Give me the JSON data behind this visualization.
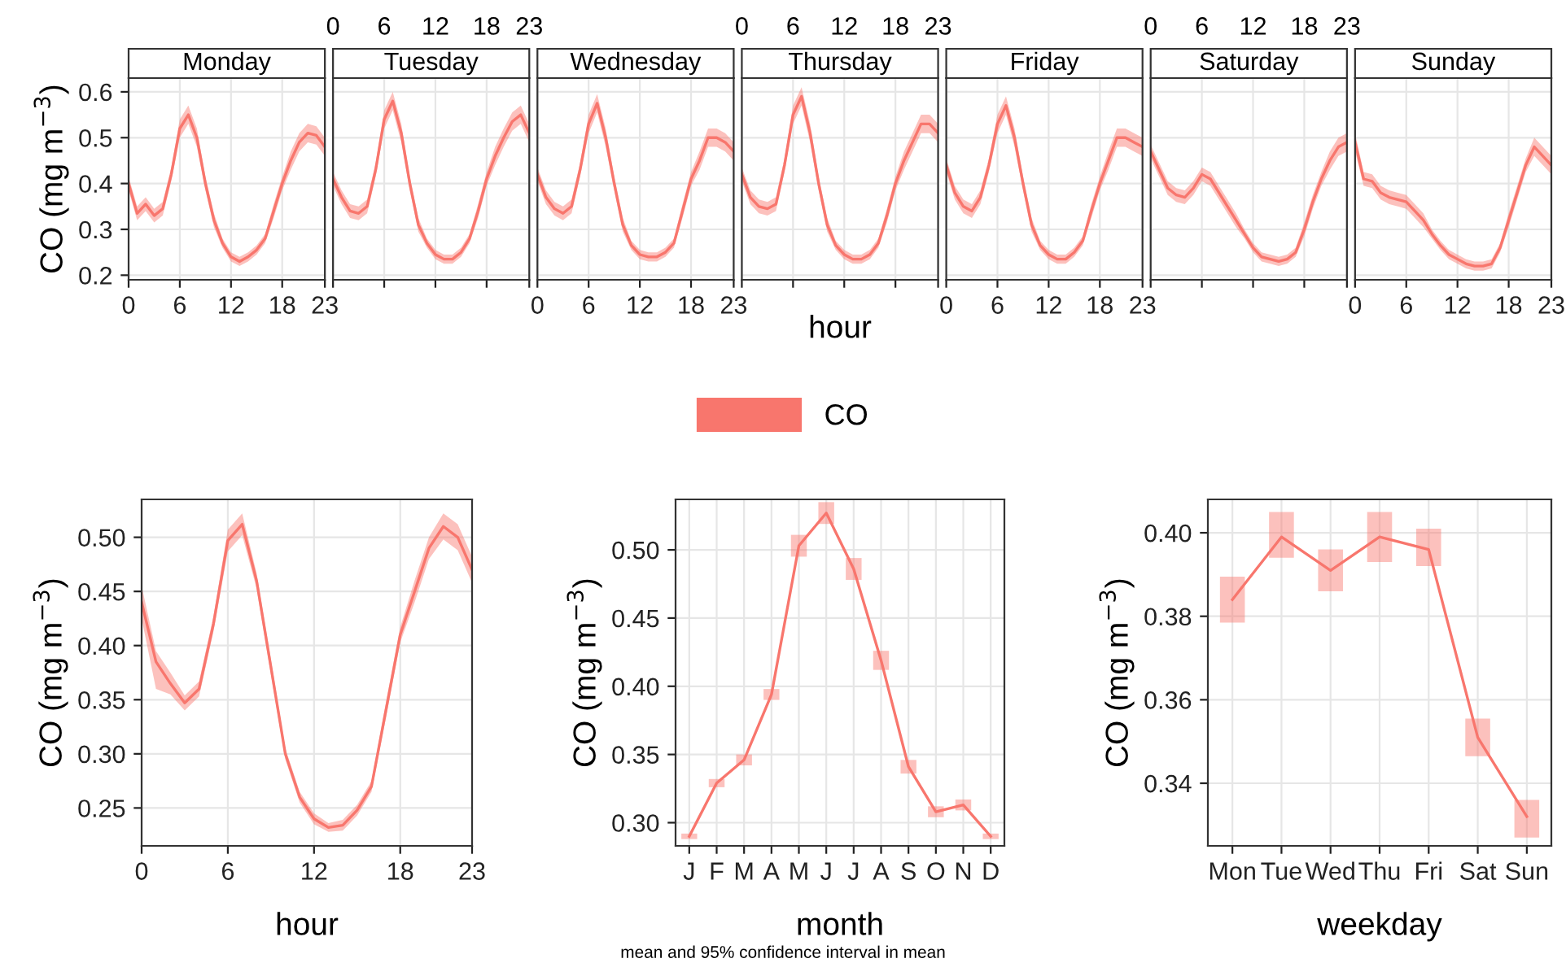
{
  "chart_data": [
    {
      "type": "line",
      "title": "Monday",
      "ylabel": "CO (mg m$^{−3}$)",
      "xlim": [
        0,
        23
      ],
      "xticks": [
        0,
        6,
        12,
        18,
        23
      ],
      "ylim": [
        0.19,
        0.63
      ],
      "yticks": [
        0.2,
        0.3,
        0.4,
        0.5,
        0.6
      ],
      "grid": true,
      "legend": "bottom",
      "x": [
        0,
        1,
        2,
        3,
        4,
        5,
        6,
        7,
        8,
        9,
        10,
        11,
        12,
        13,
        14,
        15,
        16,
        17,
        18,
        19,
        20,
        21,
        22,
        23
      ],
      "series": [
        {
          "name": "CO",
          "color": "#f8766d",
          "values": [
            0.4,
            0.335,
            0.355,
            0.33,
            0.345,
            0.42,
            0.52,
            0.55,
            0.5,
            0.4,
            0.32,
            0.27,
            0.24,
            0.23,
            0.24,
            0.255,
            0.28,
            0.34,
            0.4,
            0.45,
            0.49,
            0.51,
            0.505,
            0.48
          ],
          "lower": [
            0.385,
            0.32,
            0.34,
            0.315,
            0.33,
            0.405,
            0.5,
            0.53,
            0.48,
            0.385,
            0.305,
            0.26,
            0.23,
            0.22,
            0.23,
            0.245,
            0.27,
            0.325,
            0.385,
            0.43,
            0.47,
            0.49,
            0.485,
            0.46
          ],
          "upper": [
            0.415,
            0.35,
            0.37,
            0.345,
            0.36,
            0.435,
            0.54,
            0.57,
            0.52,
            0.415,
            0.335,
            0.28,
            0.25,
            0.24,
            0.25,
            0.265,
            0.29,
            0.355,
            0.415,
            0.47,
            0.51,
            0.53,
            0.525,
            0.5
          ]
        }
      ]
    },
    {
      "type": "line",
      "title": "Tuesday",
      "xlim": [
        0,
        23
      ],
      "xticks": [
        {
          "value": 0,
          "label": null
        },
        {
          "value": 6,
          "label": null
        },
        {
          "value": 12,
          "label": null
        },
        {
          "value": 18,
          "label": null
        },
        {
          "value": 23,
          "label": null
        }
      ],
      "x2lim": [
        0,
        23
      ],
      "x2ticks": [
        0,
        6,
        12,
        18,
        23
      ],
      "ylim": [
        0.19,
        0.63
      ],
      "yticks": [
        0.2,
        0.3,
        0.4,
        0.5,
        0.6
      ],
      "grid": true,
      "tick_labels": false,
      "x": [
        0,
        1,
        2,
        3,
        4,
        5,
        6,
        7,
        8,
        9,
        10,
        11,
        12,
        13,
        14,
        15,
        16,
        17,
        18,
        19,
        20,
        21,
        22,
        23
      ],
      "series": [
        {
          "color": "#f8766d",
          "values": [
            0.41,
            0.37,
            0.34,
            0.335,
            0.35,
            0.43,
            0.54,
            0.58,
            0.51,
            0.4,
            0.31,
            0.27,
            0.245,
            0.235,
            0.235,
            0.25,
            0.28,
            0.34,
            0.41,
            0.46,
            0.5,
            0.535,
            0.55,
            0.51
          ],
          "lower": [
            0.395,
            0.355,
            0.325,
            0.32,
            0.335,
            0.415,
            0.52,
            0.56,
            0.49,
            0.385,
            0.295,
            0.26,
            0.235,
            0.225,
            0.225,
            0.24,
            0.27,
            0.325,
            0.395,
            0.44,
            0.48,
            0.515,
            0.53,
            0.49
          ],
          "upper": [
            0.425,
            0.385,
            0.355,
            0.35,
            0.365,
            0.445,
            0.56,
            0.6,
            0.53,
            0.415,
            0.325,
            0.28,
            0.255,
            0.245,
            0.245,
            0.26,
            0.29,
            0.355,
            0.425,
            0.48,
            0.52,
            0.555,
            0.57,
            0.53
          ]
        }
      ]
    },
    {
      "type": "line",
      "title": "Wednesday",
      "xlim": [
        0,
        23
      ],
      "xticks": [
        0,
        6,
        12,
        18,
        23
      ],
      "ylim": [
        0.19,
        0.63
      ],
      "yticks": [
        0.2,
        0.3,
        0.4,
        0.5,
        0.6
      ],
      "grid": true,
      "tick_labels": "x",
      "x": [
        0,
        1,
        2,
        3,
        4,
        5,
        6,
        7,
        8,
        9,
        10,
        11,
        12,
        13,
        14,
        15,
        16,
        17,
        18,
        19,
        20,
        21,
        22,
        23
      ],
      "series": [
        {
          "color": "#f8766d",
          "values": [
            0.42,
            0.37,
            0.345,
            0.335,
            0.35,
            0.43,
            0.53,
            0.575,
            0.5,
            0.4,
            0.31,
            0.265,
            0.245,
            0.24,
            0.24,
            0.25,
            0.27,
            0.34,
            0.41,
            0.45,
            0.5,
            0.5,
            0.49,
            0.47
          ],
          "lower": [
            0.405,
            0.355,
            0.33,
            0.32,
            0.335,
            0.415,
            0.51,
            0.555,
            0.48,
            0.385,
            0.295,
            0.255,
            0.235,
            0.23,
            0.23,
            0.24,
            0.26,
            0.325,
            0.395,
            0.43,
            0.48,
            0.48,
            0.47,
            0.45
          ],
          "upper": [
            0.435,
            0.385,
            0.36,
            0.35,
            0.365,
            0.445,
            0.55,
            0.595,
            0.52,
            0.415,
            0.325,
            0.275,
            0.255,
            0.25,
            0.25,
            0.26,
            0.28,
            0.355,
            0.425,
            0.47,
            0.52,
            0.52,
            0.51,
            0.49
          ]
        }
      ]
    },
    {
      "type": "line",
      "title": "Thursday",
      "xlabel": "hour",
      "xlim": [
        0,
        23
      ],
      "xticks": [
        {
          "value": 0,
          "label": null
        },
        {
          "value": 6,
          "label": null
        },
        {
          "value": 12,
          "label": null
        },
        {
          "value": 18,
          "label": null
        },
        {
          "value": 23,
          "label": null
        }
      ],
      "x2lim": [
        0,
        23
      ],
      "x2ticks": [
        0,
        6,
        12,
        18,
        23
      ],
      "ylim": [
        0.19,
        0.63
      ],
      "yticks": [
        0.2,
        0.3,
        0.4,
        0.5,
        0.6
      ],
      "grid": true,
      "tick_labels": false,
      "x": [
        0,
        1,
        2,
        3,
        4,
        5,
        6,
        7,
        8,
        9,
        10,
        11,
        12,
        13,
        14,
        15,
        16,
        17,
        18,
        19,
        20,
        21,
        22,
        23
      ],
      "series": [
        {
          "color": "#f8766d",
          "values": [
            0.42,
            0.37,
            0.35,
            0.345,
            0.355,
            0.44,
            0.55,
            0.59,
            0.51,
            0.4,
            0.31,
            0.265,
            0.245,
            0.235,
            0.235,
            0.245,
            0.27,
            0.33,
            0.4,
            0.45,
            0.49,
            0.53,
            0.53,
            0.51
          ],
          "lower": [
            0.405,
            0.355,
            0.335,
            0.33,
            0.34,
            0.425,
            0.53,
            0.57,
            0.49,
            0.385,
            0.295,
            0.255,
            0.235,
            0.225,
            0.225,
            0.235,
            0.26,
            0.315,
            0.385,
            0.43,
            0.47,
            0.51,
            0.51,
            0.49
          ],
          "upper": [
            0.435,
            0.385,
            0.365,
            0.36,
            0.37,
            0.455,
            0.57,
            0.61,
            0.53,
            0.415,
            0.325,
            0.275,
            0.255,
            0.245,
            0.245,
            0.255,
            0.28,
            0.345,
            0.415,
            0.47,
            0.51,
            0.55,
            0.55,
            0.53
          ]
        }
      ]
    },
    {
      "type": "line",
      "title": "Friday",
      "xlim": [
        0,
        23
      ],
      "xticks": [
        0,
        6,
        12,
        18,
        23
      ],
      "ylim": [
        0.19,
        0.63
      ],
      "yticks": [
        0.2,
        0.3,
        0.4,
        0.5,
        0.6
      ],
      "grid": true,
      "tick_labels": "x",
      "x": [
        0,
        1,
        2,
        3,
        4,
        5,
        6,
        7,
        8,
        9,
        10,
        11,
        12,
        13,
        14,
        15,
        16,
        17,
        18,
        19,
        20,
        21,
        22,
        23
      ],
      "series": [
        {
          "color": "#f8766d",
          "values": [
            0.44,
            0.38,
            0.35,
            0.34,
            0.37,
            0.44,
            0.53,
            0.57,
            0.5,
            0.4,
            0.31,
            0.265,
            0.245,
            0.235,
            0.235,
            0.25,
            0.275,
            0.34,
            0.4,
            0.45,
            0.5,
            0.5,
            0.49,
            0.48
          ],
          "lower": [
            0.425,
            0.365,
            0.335,
            0.325,
            0.355,
            0.425,
            0.51,
            0.55,
            0.48,
            0.385,
            0.295,
            0.255,
            0.235,
            0.225,
            0.225,
            0.24,
            0.265,
            0.325,
            0.385,
            0.43,
            0.48,
            0.48,
            0.47,
            0.46
          ],
          "upper": [
            0.455,
            0.395,
            0.365,
            0.355,
            0.385,
            0.455,
            0.55,
            0.59,
            0.52,
            0.415,
            0.325,
            0.275,
            0.255,
            0.245,
            0.245,
            0.26,
            0.285,
            0.355,
            0.415,
            0.47,
            0.52,
            0.52,
            0.51,
            0.5
          ]
        }
      ]
    },
    {
      "type": "line",
      "title": "Saturday",
      "xlim": [
        0,
        23
      ],
      "xticks": [
        {
          "value": 0,
          "label": null
        },
        {
          "value": 6,
          "label": null
        },
        {
          "value": 12,
          "label": null
        },
        {
          "value": 18,
          "label": null
        },
        {
          "value": 23,
          "label": null
        }
      ],
      "x2lim": [
        0,
        23
      ],
      "x2ticks": [
        0,
        6,
        12,
        18,
        23
      ],
      "ylim": [
        0.19,
        0.63
      ],
      "yticks": [
        0.2,
        0.3,
        0.4,
        0.5,
        0.6
      ],
      "grid": true,
      "tick_labels": false,
      "x": [
        0,
        1,
        2,
        3,
        4,
        5,
        6,
        7,
        8,
        9,
        10,
        11,
        12,
        13,
        14,
        15,
        16,
        17,
        18,
        19,
        20,
        21,
        22,
        23
      ],
      "series": [
        {
          "color": "#f8766d",
          "values": [
            0.47,
            0.43,
            0.39,
            0.375,
            0.37,
            0.39,
            0.42,
            0.41,
            0.38,
            0.35,
            0.32,
            0.29,
            0.26,
            0.24,
            0.235,
            0.23,
            0.235,
            0.25,
            0.3,
            0.36,
            0.41,
            0.45,
            0.48,
            0.49
          ],
          "lower": [
            0.455,
            0.415,
            0.375,
            0.36,
            0.355,
            0.375,
            0.405,
            0.395,
            0.365,
            0.335,
            0.305,
            0.28,
            0.25,
            0.23,
            0.225,
            0.22,
            0.225,
            0.24,
            0.285,
            0.345,
            0.395,
            0.43,
            0.46,
            0.47
          ],
          "upper": [
            0.485,
            0.445,
            0.405,
            0.39,
            0.385,
            0.405,
            0.435,
            0.425,
            0.395,
            0.365,
            0.335,
            0.3,
            0.27,
            0.25,
            0.245,
            0.24,
            0.245,
            0.26,
            0.315,
            0.375,
            0.425,
            0.47,
            0.5,
            0.51
          ]
        }
      ]
    },
    {
      "type": "line",
      "title": "Sunday",
      "xlim": [
        0,
        23
      ],
      "xticks": [
        0,
        6,
        12,
        18,
        23
      ],
      "ylim": [
        0.19,
        0.63
      ],
      "yticks": [
        0.2,
        0.3,
        0.4,
        0.5,
        0.6
      ],
      "grid": true,
      "tick_labels": "x",
      "x": [
        0,
        1,
        2,
        3,
        4,
        5,
        6,
        7,
        8,
        9,
        10,
        11,
        12,
        13,
        14,
        15,
        16,
        17,
        18,
        19,
        20,
        21,
        22,
        23
      ],
      "series": [
        {
          "color": "#f8766d",
          "values": [
            0.49,
            0.41,
            0.405,
            0.38,
            0.37,
            0.365,
            0.36,
            0.34,
            0.32,
            0.29,
            0.265,
            0.245,
            0.235,
            0.225,
            0.22,
            0.22,
            0.225,
            0.26,
            0.32,
            0.38,
            0.44,
            0.48,
            0.46,
            0.44
          ],
          "lower": [
            0.47,
            0.395,
            0.39,
            0.365,
            0.355,
            0.35,
            0.345,
            0.325,
            0.305,
            0.28,
            0.255,
            0.235,
            0.225,
            0.215,
            0.21,
            0.21,
            0.215,
            0.25,
            0.305,
            0.365,
            0.425,
            0.46,
            0.44,
            0.42
          ],
          "upper": [
            0.51,
            0.425,
            0.42,
            0.395,
            0.385,
            0.38,
            0.375,
            0.355,
            0.335,
            0.3,
            0.275,
            0.255,
            0.245,
            0.235,
            0.23,
            0.23,
            0.235,
            0.27,
            0.335,
            0.395,
            0.455,
            0.5,
            0.48,
            0.46
          ]
        }
      ]
    },
    {
      "type": "line",
      "xlabel": "hour",
      "ylabel": "CO (mg m$^{−3}$)",
      "xlim": [
        0,
        23
      ],
      "xticks": [
        0,
        6,
        12,
        18,
        23
      ],
      "ylim": [
        0.215,
        0.535
      ],
      "yticks": [
        {
          "value": 0.25,
          "label": "0.25"
        },
        {
          "value": 0.3,
          "label": "0.30"
        },
        {
          "value": 0.35,
          "label": "0.35"
        },
        {
          "value": 0.4,
          "label": "0.40"
        },
        {
          "value": 0.45,
          "label": "0.45"
        },
        {
          "value": 0.5,
          "label": "0.50"
        }
      ],
      "grid": true,
      "x": [
        0,
        1,
        2,
        3,
        4,
        5,
        6,
        7,
        8,
        9,
        10,
        11,
        12,
        13,
        14,
        15,
        16,
        17,
        18,
        19,
        20,
        21,
        22,
        23
      ],
      "series": [
        {
          "color": "#f8766d",
          "values": [
            0.44,
            0.385,
            0.365,
            0.347,
            0.36,
            0.42,
            0.497,
            0.512,
            0.46,
            0.38,
            0.3,
            0.26,
            0.24,
            0.232,
            0.234,
            0.248,
            0.27,
            0.34,
            0.41,
            0.45,
            0.49,
            0.51,
            0.5,
            0.47
          ],
          "lower": [
            0.425,
            0.36,
            0.355,
            0.34,
            0.353,
            0.413,
            0.487,
            0.502,
            0.453,
            0.373,
            0.295,
            0.255,
            0.235,
            0.228,
            0.229,
            0.243,
            0.265,
            0.333,
            0.403,
            0.44,
            0.48,
            0.498,
            0.488,
            0.458
          ],
          "upper": [
            0.455,
            0.395,
            0.375,
            0.354,
            0.367,
            0.427,
            0.507,
            0.522,
            0.467,
            0.387,
            0.305,
            0.265,
            0.245,
            0.236,
            0.239,
            0.253,
            0.275,
            0.347,
            0.417,
            0.46,
            0.5,
            0.522,
            0.512,
            0.482
          ]
        }
      ]
    },
    {
      "type": "line",
      "xlabel": "month",
      "ylabel": "CO (mg m$^{−3}$)",
      "categories": [
        "J",
        "F",
        "M",
        "A",
        "M",
        "J",
        "J",
        "A",
        "S",
        "O",
        "N",
        "D"
      ],
      "ylim": [
        0.283,
        0.537
      ],
      "yticks": [
        {
          "value": 0.3,
          "label": "0.30"
        },
        {
          "value": 0.35,
          "label": "0.35"
        },
        {
          "value": 0.4,
          "label": "0.40"
        },
        {
          "value": 0.45,
          "label": "0.45"
        },
        {
          "value": 0.5,
          "label": "0.50"
        }
      ],
      "grid": true,
      "series": [
        {
          "color": "#f8766d",
          "values": [
            0.29,
            0.329,
            0.346,
            0.394,
            0.503,
            0.527,
            0.486,
            0.419,
            0.341,
            0.308,
            0.313,
            0.29
          ],
          "errors": [
            [
              0.288,
              0.292
            ],
            [
              0.326,
              0.332
            ],
            [
              0.342,
              0.35
            ],
            [
              0.39,
              0.398
            ],
            [
              0.495,
              0.511
            ],
            [
              0.519,
              0.535
            ],
            [
              0.478,
              0.494
            ],
            [
              0.412,
              0.426
            ],
            [
              0.336,
              0.346
            ],
            [
              0.304,
              0.312
            ],
            [
              0.309,
              0.317
            ],
            [
              0.288,
              0.292
            ]
          ]
        }
      ]
    },
    {
      "type": "line",
      "xlabel": "weekday",
      "ylabel": "CO (mg m$^{−3}$)",
      "categories": [
        "Mon",
        "Tue",
        "Wed",
        "Thu",
        "Fri",
        "Sat",
        "Sun"
      ],
      "ylim": [
        0.325,
        0.408
      ],
      "yticks": [
        {
          "value": 0.34,
          "label": "0.34"
        },
        {
          "value": 0.36,
          "label": "0.36"
        },
        {
          "value": 0.38,
          "label": "0.38"
        },
        {
          "value": 0.4,
          "label": "0.40"
        }
      ],
      "grid": true,
      "annotations": [
        "mean and 95% confidence interval in mean"
      ],
      "series": [
        {
          "color": "#f8766d",
          "values": [
            0.384,
            0.399,
            0.391,
            0.399,
            0.396,
            0.351,
            0.332
          ],
          "errors": [
            [
              0.3785,
              0.3895
            ],
            [
              0.394,
              0.405
            ],
            [
              0.386,
              0.396
            ],
            [
              0.393,
              0.405
            ],
            [
              0.392,
              0.401
            ],
            [
              0.3465,
              0.3555
            ],
            [
              0.327,
              0.336
            ]
          ]
        }
      ]
    }
  ]
}
